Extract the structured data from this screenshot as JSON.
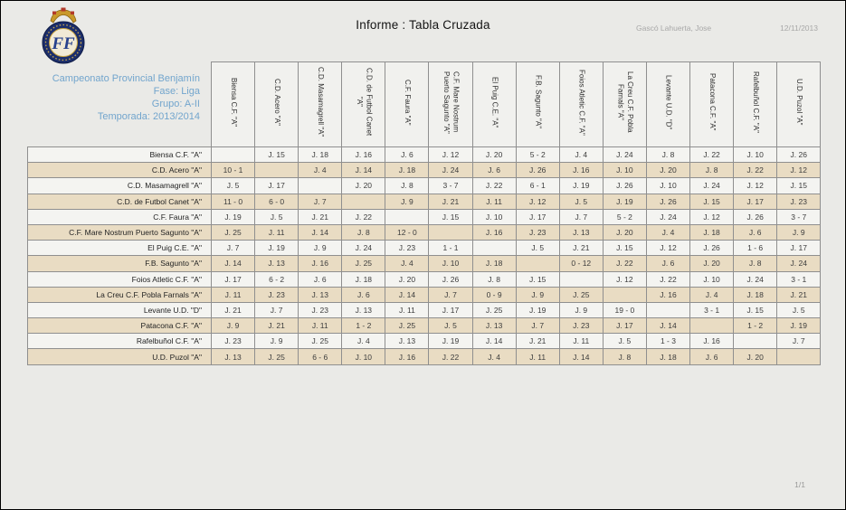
{
  "page": {
    "title": "Informe : Tabla Cruzada",
    "author": "Gascó Lahuerta, Jose",
    "date": "12/11/2013",
    "page_indicator": "1/1"
  },
  "logo": {
    "letters": "FF"
  },
  "competition": {
    "lines": [
      "Campeonato Provincial Benjamín",
      "Fase: Liga",
      "Grupo: A-II",
      "Temporada: 2013/2014"
    ]
  },
  "colors": {
    "page_background": "#eaeae7",
    "row_light": "#f4f4f1",
    "row_beige": "#e9dcc3",
    "header_cell": "#f1f1ee",
    "grid_border": "#8f8f8f",
    "info_blue": "#72a5cd",
    "muted_gray": "#a8a8a8",
    "crest_navy": "#1c2e6b",
    "crest_gold": "#c9992b"
  },
  "table": {
    "columns": [
      "Biensa C.F. \"A\"",
      "C.D. Acero \"A\"",
      "C.D. Masamagrell \"A\"",
      "C.D. de Futbol Canet \"A\"",
      "C.F. Faura \"A\"",
      "C.F. Mare Nostrum Puerto Sagunto \"A\"",
      "El Puig C.E. \"A\"",
      "F.B. Sagunto \"A\"",
      "Foios Atletic C.F. \"A\"",
      "La Creu C.F. Pobla Farnals \"A\"",
      "Levante U.D. \"D\"",
      "Patacona C.F. \"A\"",
      "Rafelbuñol C.F. \"A\"",
      "U.D. Puzol \"A\""
    ],
    "rows": [
      {
        "label": "Biensa C.F. \"A\"",
        "cells": [
          "",
          "J. 15",
          "J. 18",
          "J. 16",
          "J. 6",
          "J. 12",
          "J. 20",
          "5 - 2",
          "J. 4",
          "J. 24",
          "J. 8",
          "J. 22",
          "J. 10",
          "J. 26"
        ]
      },
      {
        "label": "C.D. Acero \"A\"",
        "cells": [
          "10 - 1",
          "",
          "J. 4",
          "J. 14",
          "J. 18",
          "J. 24",
          "J. 6",
          "J. 26",
          "J. 16",
          "J. 10",
          "J. 20",
          "J. 8",
          "J. 22",
          "J. 12"
        ]
      },
      {
        "label": "C.D. Masamagrell \"A\"",
        "cells": [
          "J. 5",
          "J. 17",
          "",
          "J. 20",
          "J. 8",
          "3 - 7",
          "J. 22",
          "6 - 1",
          "J. 19",
          "J. 26",
          "J. 10",
          "J. 24",
          "J. 12",
          "J. 15"
        ]
      },
      {
        "label": "C.D. de Futbol Canet \"A\"",
        "cells": [
          "11 - 0",
          "6 - 0",
          "J. 7",
          "",
          "J. 9",
          "J. 21",
          "J. 11",
          "J. 12",
          "J. 5",
          "J. 19",
          "J. 26",
          "J. 15",
          "J. 17",
          "J. 23"
        ]
      },
      {
        "label": "C.F. Faura \"A\"",
        "cells": [
          "J. 19",
          "J. 5",
          "J. 21",
          "J. 22",
          "",
          "J. 15",
          "J. 10",
          "J. 17",
          "J. 7",
          "5 - 2",
          "J. 24",
          "J. 12",
          "J. 26",
          "3 - 7"
        ]
      },
      {
        "label": "C.F. Mare Nostrum Puerto Sagunto \"A\"",
        "cells": [
          "J. 25",
          "J. 11",
          "J. 14",
          "J. 8",
          "12 - 0",
          "",
          "J. 16",
          "J. 23",
          "J. 13",
          "J. 20",
          "J. 4",
          "J. 18",
          "J. 6",
          "J. 9"
        ]
      },
      {
        "label": "El Puig C.E. \"A\"",
        "cells": [
          "J. 7",
          "J. 19",
          "J. 9",
          "J. 24",
          "J. 23",
          "1 - 1",
          "",
          "J. 5",
          "J. 21",
          "J. 15",
          "J. 12",
          "J. 26",
          "1 - 6",
          "J. 17"
        ]
      },
      {
        "label": "F.B. Sagunto \"A\"",
        "cells": [
          "J. 14",
          "J. 13",
          "J. 16",
          "J. 25",
          "J. 4",
          "J. 10",
          "J. 18",
          "",
          "0 - 12",
          "J. 22",
          "J. 6",
          "J. 20",
          "J. 8",
          "J. 24"
        ]
      },
      {
        "label": "Foios Atletic C.F. \"A\"",
        "cells": [
          "J. 17",
          "6 - 2",
          "J. 6",
          "J. 18",
          "J. 20",
          "J. 26",
          "J. 8",
          "J. 15",
          "",
          "J. 12",
          "J. 22",
          "J. 10",
          "J. 24",
          "3 - 1"
        ]
      },
      {
        "label": "La Creu C.F. Pobla Farnals \"A\"",
        "cells": [
          "J. 11",
          "J. 23",
          "J. 13",
          "J. 6",
          "J. 14",
          "J. 7",
          "0 - 9",
          "J. 9",
          "J. 25",
          "",
          "J. 16",
          "J. 4",
          "J. 18",
          "J. 21"
        ]
      },
      {
        "label": "Levante U.D. \"D\"",
        "cells": [
          "J. 21",
          "J. 7",
          "J. 23",
          "J. 13",
          "J. 11",
          "J. 17",
          "J. 25",
          "J. 19",
          "J. 9",
          "19 - 0",
          "",
          "3 - 1",
          "J. 15",
          "J. 5"
        ]
      },
      {
        "label": "Patacona C.F. \"A\"",
        "cells": [
          "J. 9",
          "J. 21",
          "J. 11",
          "1 - 2",
          "J. 25",
          "J. 5",
          "J. 13",
          "J. 7",
          "J. 23",
          "J. 17",
          "J. 14",
          "",
          "1 - 2",
          "J. 19"
        ]
      },
      {
        "label": "Rafelbuñol C.F. \"A\"",
        "cells": [
          "J. 23",
          "J. 9",
          "J. 25",
          "J. 4",
          "J. 13",
          "J. 19",
          "J. 14",
          "J. 21",
          "J. 11",
          "J. 5",
          "1 - 3",
          "J. 16",
          "",
          "J. 7"
        ]
      },
      {
        "label": "U.D. Puzol \"A\"",
        "cells": [
          "J. 13",
          "J. 25",
          "6 - 6",
          "J. 10",
          "J. 16",
          "J. 22",
          "J. 4",
          "J. 11",
          "J. 14",
          "J. 8",
          "J. 18",
          "J. 6",
          "J. 20",
          ""
        ]
      }
    ]
  }
}
